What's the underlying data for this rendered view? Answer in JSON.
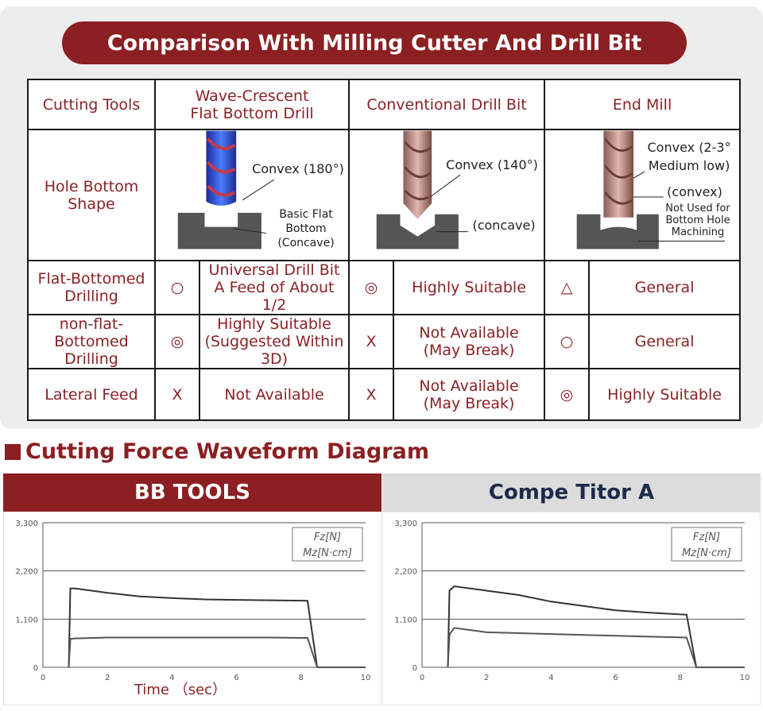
{
  "header": {
    "title": "Comparison With Milling Cutter And Drill Bit"
  },
  "table": {
    "columns": {
      "rowhead": "Cutting Tools",
      "col1_line1": "Wave-Crescent",
      "col1_line2": "Flat Bottom Drill",
      "col2": "Conventional Drill Bit",
      "col3": "End Mill"
    },
    "hole_row": {
      "label_line1": "Hole Bottom",
      "label_line2": "Shape",
      "col1": {
        "ann1": "Convex (180°)",
        "ann2_l1": "Basic Flat",
        "ann2_l2": "Bottom",
        "ann2_l3": "(Concave)"
      },
      "col2": {
        "ann1": "Convex (140°)",
        "ann2": "(concave)"
      },
      "col3": {
        "ann1_l1": "Convex (2-3°",
        "ann1_l2": "Medium low)",
        "ann2": "(convex)",
        "ann3_l1": "Not Used for",
        "ann3_l2": "Bottom Hole",
        "ann3_l3": "Machining"
      }
    },
    "rows": [
      {
        "label_l1": "Flat-Bottomed",
        "label_l2": "Drilling",
        "s1": "○",
        "t1_l1": "Universal Drill Bit",
        "t1_l2": "A Feed of About 1/2",
        "s2": "◎",
        "t2_l1": "Highly Suitable",
        "t2_l2": "",
        "s3": "△",
        "t3": "General"
      },
      {
        "label_l1": "non-flat-",
        "label_l2": "Bottomed Drilling",
        "s1": "◎",
        "t1_l1": "Highly Suitable",
        "t1_l2": "(Suggested Within 3D)",
        "s2": "X",
        "t2_l1": "Not Available",
        "t2_l2": "(May Break)",
        "s3": "○",
        "t3": "General"
      },
      {
        "label_l1": "Lateral Feed",
        "label_l2": "",
        "s1": "X",
        "t1_l1": "Not Available",
        "t1_l2": "",
        "s2": "X",
        "t2_l1": "Not Available",
        "t2_l2": "(May Break)",
        "s3": "◎",
        "t3": "Highly Suitable"
      }
    ]
  },
  "section": {
    "title": "Cutting Force Waveform Diagram"
  },
  "colors": {
    "brand": "#8b1f22",
    "brand_text": "#8a2226",
    "panel": "#ededed"
  },
  "chart_data": [
    {
      "type": "line",
      "title": "BB TOOLS",
      "xlabel": "Time （sec）",
      "ylabel": "",
      "xlim": [
        0,
        10
      ],
      "ylim": [
        0,
        3300
      ],
      "xticks": [
        0,
        2,
        4,
        6,
        8,
        10
      ],
      "yticks": [
        0,
        1100,
        2200,
        3300
      ],
      "ytick_labels": [
        "0",
        "1,100",
        "2,200",
        "3,300"
      ],
      "grid": "horizontal",
      "legend": [
        "Fz[N]",
        "Mz[N·cm]"
      ],
      "legend_position": "top-right",
      "series": [
        {
          "name": "Fz[N]",
          "x": [
            0.8,
            0.85,
            1.0,
            2,
            3,
            4,
            5,
            6,
            7,
            8.2,
            8.5,
            9.0,
            10
          ],
          "y": [
            0,
            1800,
            1800,
            1700,
            1620,
            1580,
            1550,
            1540,
            1530,
            1520,
            0,
            0,
            0
          ]
        },
        {
          "name": "Mz[N·cm]",
          "x": [
            0.8,
            0.85,
            1.0,
            2,
            3,
            4,
            5,
            6,
            7,
            8.2,
            8.5,
            9.0,
            10
          ],
          "y": [
            0,
            650,
            660,
            680,
            680,
            680,
            680,
            680,
            680,
            670,
            0,
            0,
            0
          ]
        }
      ]
    },
    {
      "type": "line",
      "title": "Compe Titor A",
      "xlabel": "",
      "ylabel": "",
      "xlim": [
        0,
        10
      ],
      "ylim": [
        0,
        3300
      ],
      "xticks": [
        0,
        2,
        4,
        6,
        8,
        10
      ],
      "yticks": [
        0,
        1100,
        2200,
        3300
      ],
      "ytick_labels": [
        "0",
        "1,100",
        "2,200",
        "3,300"
      ],
      "grid": "horizontal",
      "legend": [
        "Fz[N]",
        "Mz[N·cm]"
      ],
      "legend_position": "top-right",
      "series": [
        {
          "name": "Fz[N]",
          "x": [
            0.8,
            0.85,
            1.0,
            2,
            3,
            4,
            5,
            6,
            7,
            8.2,
            8.5,
            9.0,
            10
          ],
          "y": [
            0,
            1750,
            1850,
            1750,
            1650,
            1500,
            1400,
            1300,
            1250,
            1200,
            0,
            0,
            0
          ]
        },
        {
          "name": "Mz[N·cm]",
          "x": [
            0.8,
            0.85,
            1.0,
            2,
            3,
            4,
            5,
            6,
            7,
            8.2,
            8.5,
            9.0,
            10
          ],
          "y": [
            0,
            750,
            900,
            800,
            780,
            760,
            740,
            720,
            700,
            680,
            0,
            0,
            0
          ]
        }
      ]
    }
  ]
}
